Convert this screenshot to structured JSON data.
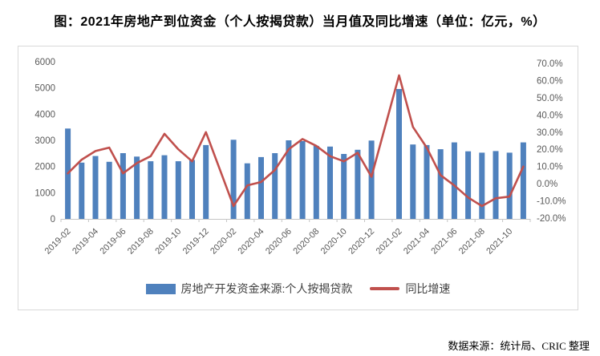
{
  "title": "图：2021年房地产到位资金（个人按揭贷款）当月值及同比增速（单位：亿元，%）",
  "footer": "数据来源：统计局、CRIC 整理",
  "legend": {
    "bars_label": "房地产开发资金来源:个人按揭贷款",
    "line_label": "同比增速"
  },
  "colors": {
    "bar": "#4F81BD",
    "line": "#C0504D",
    "axis_text": "#595959",
    "axis_line": "#C6C6C6",
    "box_border": "#D9D9D9"
  },
  "chart_data": {
    "type": "bar",
    "subtype": "bar+line combo, line on secondary axis",
    "title": "图：2021年房地产到位资金（个人按揭贷款）当月值及同比增速（单位：亿元，%）",
    "grid": false,
    "legend_position": "bottom",
    "x_label_step": 2,
    "categories": [
      "2019-02",
      "2019-03",
      "2019-04",
      "2019-05",
      "2019-06",
      "2019-07",
      "2019-08",
      "2019-09",
      "2019-10",
      "2019-11",
      "2019-12",
      "2020-01",
      "2020-02",
      "2020-03",
      "2020-04",
      "2020-05",
      "2020-06",
      "2020-07",
      "2020-08",
      "2020-09",
      "2020-10",
      "2020-11",
      "2020-12",
      "2021-01",
      "2021-02",
      "2021-03",
      "2021-04",
      "2021-05",
      "2021-06",
      "2021-07",
      "2021-08",
      "2021-09",
      "2021-10",
      "2021-11"
    ],
    "series": [
      {
        "name": "房地产开发资金来源:个人按揭贷款",
        "type": "bar",
        "axis": "left",
        "unit": "亿元",
        "values": [
          3450,
          2150,
          2400,
          2180,
          2510,
          2380,
          2200,
          2430,
          2200,
          2250,
          2820,
          null,
          3020,
          2120,
          2360,
          2510,
          3000,
          2970,
          2790,
          2760,
          2480,
          2640,
          2990,
          null,
          4960,
          2840,
          2820,
          2660,
          2920,
          2580,
          2530,
          2590,
          2530,
          2920
        ]
      },
      {
        "name": "同比增速",
        "type": "line",
        "axis": "right",
        "unit": "%",
        "values": [
          6,
          14,
          19,
          21,
          6,
          12,
          16,
          29,
          20,
          13,
          30,
          null,
          -13,
          -1,
          1,
          8,
          20,
          26,
          22,
          16,
          13,
          18,
          4,
          null,
          63,
          33,
          21,
          5,
          -1,
          -8,
          -13,
          -8.5,
          -7.5,
          10
        ]
      }
    ],
    "left_axis": {
      "min": 0,
      "max": 6000,
      "tick_labels": [
        "6000",
        "5000",
        "4000",
        "3000",
        "2000",
        "1000",
        "0"
      ]
    },
    "right_axis": {
      "min": -20,
      "max": 70,
      "tick_labels": [
        "70.0%",
        "60.0%",
        "50.0%",
        "40.0%",
        "30.0%",
        "20.0%",
        "10.0%",
        "0.0%",
        "-10.0%",
        "-20.0%"
      ]
    }
  }
}
